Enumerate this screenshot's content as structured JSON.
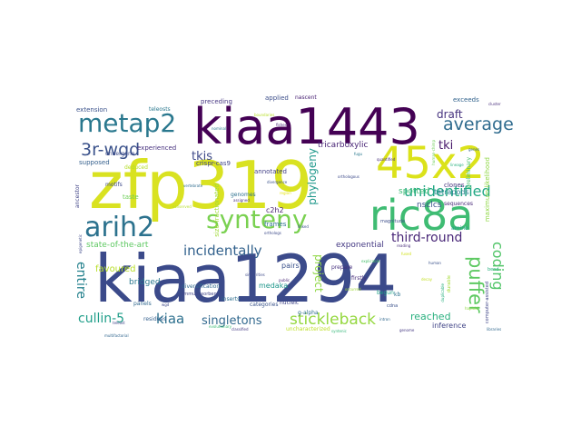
{
  "wordcloud": {
    "words": [
      {
        "text": "kiaa1294",
        "color": "#3b4a8a"
      },
      {
        "text": "zfp319",
        "color": "#d9e221"
      },
      {
        "text": "kiaa1443",
        "color": "#440154"
      },
      {
        "text": "45x2",
        "color": "#dbe21a"
      },
      {
        "text": "ric8a",
        "color": "#3fbc73"
      },
      {
        "text": "synteny",
        "color": "#7ad151"
      },
      {
        "text": "metap2",
        "color": "#2a788e"
      },
      {
        "text": "arih2",
        "color": "#2c728e"
      },
      {
        "text": "average",
        "color": "#2f6b8e"
      },
      {
        "text": "unidentified",
        "color": "#22a884"
      },
      {
        "text": "3r-wgd",
        "color": "#3b528b"
      },
      {
        "text": "incidentally",
        "color": "#33628d"
      },
      {
        "text": "puffer",
        "color": "#5ec962"
      },
      {
        "text": "coding",
        "color": "#52c569"
      },
      {
        "text": "stickleback",
        "color": "#95d840"
      },
      {
        "text": "cullin-5",
        "color": "#1f9e89"
      },
      {
        "text": "kiaa",
        "color": "#2d708e"
      },
      {
        "text": "third-round",
        "color": "#482677"
      },
      {
        "text": "singletons",
        "color": "#31688e"
      },
      {
        "text": "entire",
        "color": "#26828e"
      },
      {
        "text": "phylogeny",
        "color": "#1f988b"
      },
      {
        "text": "draft",
        "color": "#46327e"
      },
      {
        "text": "tkis",
        "color": "#3e4989"
      },
      {
        "text": "tki",
        "color": "#48186a"
      },
      {
        "text": "project",
        "color": "#8fd744"
      },
      {
        "text": "reached",
        "color": "#2ab07f"
      },
      {
        "text": "exponential",
        "color": "#443983"
      },
      {
        "text": "state-of-the-art",
        "color": "#5ec962"
      },
      {
        "text": "favoured",
        "color": "#b8de29"
      },
      {
        "text": "bridged",
        "color": "#2a788e"
      },
      {
        "text": "tricarboxylic",
        "color": "#482475"
      },
      {
        "text": "spotted",
        "color": "#3cbb75"
      },
      {
        "text": "nsclcs",
        "color": "#3b528b"
      },
      {
        "text": "tetrapods",
        "color": "#277f8e"
      },
      {
        "text": "medaka",
        "color": "#1f968b"
      },
      {
        "text": "inference",
        "color": "#414487"
      },
      {
        "text": "crispr-cas9",
        "color": "#404688"
      },
      {
        "text": "c2h2",
        "color": "#481f70"
      },
      {
        "text": "frames",
        "color": "#2c728e"
      },
      {
        "text": "pairs",
        "color": "#3b528b"
      },
      {
        "text": "annotated",
        "color": "#424086"
      },
      {
        "text": "experienced",
        "color": "#46307e"
      },
      {
        "text": "supposed",
        "color": "#35608d"
      },
      {
        "text": "undergone",
        "color": "#3e4c8a"
      },
      {
        "text": "extension",
        "color": "#3b528b"
      },
      {
        "text": "teleosts",
        "color": "#2a788e"
      },
      {
        "text": "preceding",
        "color": "#453581"
      },
      {
        "text": "applied",
        "color": "#3d4e8a"
      },
      {
        "text": "nascent",
        "color": "#482173"
      },
      {
        "text": "exceeds",
        "color": "#33638d"
      },
      {
        "text": "clones",
        "color": "#46337f"
      },
      {
        "text": "preliminary",
        "color": "#4ac16d"
      },
      {
        "text": "maximum-likelihood",
        "color": "#8fd744"
      },
      {
        "text": "sequences",
        "color": "#482878"
      },
      {
        "text": "amino",
        "color": "#1fa088"
      },
      {
        "text": "taste",
        "color": "#6ece58"
      },
      {
        "text": "size-fractionated",
        "color": "#a0da39"
      },
      {
        "text": "diversification",
        "color": "#31688e"
      },
      {
        "text": "genomes",
        "color": "#2d708e"
      },
      {
        "text": "motifs",
        "color": "#3e4a89"
      },
      {
        "text": "deduced",
        "color": "#b5de2b"
      },
      {
        "text": "ancestor",
        "color": "#414487"
      },
      {
        "text": "residues",
        "color": "#34608d"
      },
      {
        "text": "panels",
        "color": "#31688e"
      },
      {
        "text": "inserts",
        "color": "#2e6f8e"
      },
      {
        "text": "categories",
        "color": "#3a538b"
      },
      {
        "text": "nucleic",
        "color": "#404588"
      },
      {
        "text": "g-alpha",
        "color": "#2e6e8e"
      },
      {
        "text": "uncharacterized",
        "color": "#bddf26"
      },
      {
        "text": "begun",
        "color": "#1fa187"
      },
      {
        "text": "firstly",
        "color": "#472c7a"
      },
      {
        "text": "prepare",
        "color": "#46307e"
      },
      {
        "text": "durable",
        "color": "#a5db36"
      },
      {
        "text": "magnitude",
        "color": "#3d4e8a"
      },
      {
        "text": "cdna",
        "color": "#3b528b"
      },
      {
        "text": "kb",
        "color": "#2c738e"
      },
      {
        "text": "computer-assisted",
        "color": "#404688"
      },
      {
        "text": "multifactorial",
        "color": "#31668e"
      },
      {
        "text": "classified",
        "color": "#443a83"
      },
      {
        "text": "bend",
        "color": "#2ab07f"
      },
      {
        "text": "libraries",
        "color": "#31688e"
      },
      {
        "text": "quantified",
        "color": "#472f7d"
      },
      {
        "text": "orthologous",
        "color": "#3e4c8a"
      },
      {
        "text": "duplicable",
        "color": "#2ab07f"
      },
      {
        "text": "divergence",
        "color": "#3b528b"
      },
      {
        "text": "assigned",
        "color": "#46337e"
      },
      {
        "text": "similarities",
        "color": "#3e4a89"
      },
      {
        "text": "immunosorbent",
        "color": "#414487"
      },
      {
        "text": "public",
        "color": "#482576"
      },
      {
        "text": "nominal",
        "color": "#2a788e"
      },
      {
        "text": "genes",
        "color": "#32648e"
      },
      {
        "text": "epigenetic",
        "color": "#3e4989"
      },
      {
        "text": "human-chimp",
        "color": "#6ece58"
      },
      {
        "text": "human",
        "color": "#3b528b"
      },
      {
        "text": "lineage",
        "color": "#2ab07f"
      },
      {
        "text": "fishes",
        "color": "#482878"
      },
      {
        "text": "orthologs",
        "color": "#3e4c8a"
      },
      {
        "text": "reading",
        "color": "#472c7a"
      },
      {
        "text": "decay",
        "color": "#c2df23"
      },
      {
        "text": "explicable",
        "color": "#4ac16d"
      },
      {
        "text": "occurred",
        "color": "#a0da39"
      },
      {
        "text": "conserved",
        "color": "#b5de2b"
      },
      {
        "text": "syntenic",
        "color": "#35b779"
      },
      {
        "text": "fused",
        "color": "#d0e11c"
      },
      {
        "text": "wgd",
        "color": "#3e4989"
      },
      {
        "text": "intron",
        "color": "#31688e"
      },
      {
        "text": "haploid",
        "color": "#8fd744"
      },
      {
        "text": "evolutionary",
        "color": "#3cbb75"
      },
      {
        "text": "cluster",
        "color": "#472d7b"
      },
      {
        "text": "boundaries",
        "color": "#b8de29"
      },
      {
        "text": "vertebrate",
        "color": "#2f6c8e"
      },
      {
        "text": "region",
        "color": "#e5e419"
      },
      {
        "text": "linked",
        "color": "#3b528b"
      },
      {
        "text": "fugu",
        "color": "#2a788e"
      },
      {
        "text": "teleost",
        "color": "#404688"
      },
      {
        "text": "genome",
        "color": "#453882"
      }
    ]
  }
}
